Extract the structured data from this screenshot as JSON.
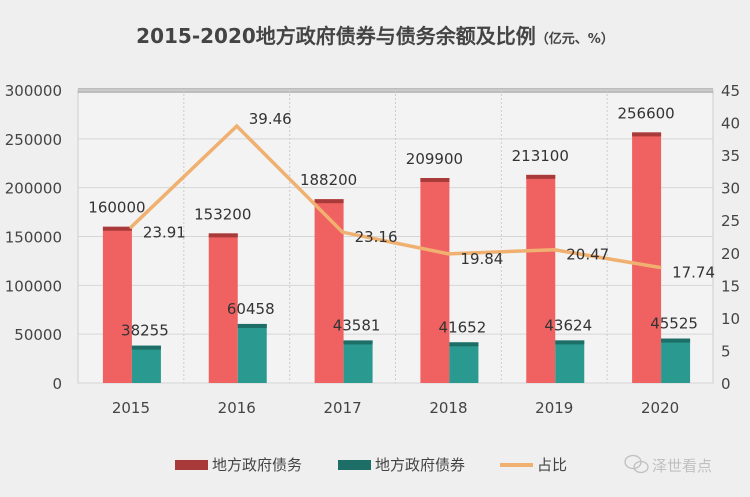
{
  "chart_data": {
    "type": "bar+line",
    "title": "2015-2020地方政府债券与债务余额及比例",
    "title_unit": "（亿元、%）",
    "categories": [
      "2015",
      "2016",
      "2017",
      "2018",
      "2019",
      "2020"
    ],
    "series": [
      {
        "name": "地方政府债务",
        "type": "bar",
        "axis": "left",
        "color": "#f06262",
        "values": [
          160000,
          153200,
          188200,
          209900,
          213100,
          256600
        ]
      },
      {
        "name": "地方政府债券",
        "type": "bar",
        "axis": "left",
        "color": "#2a9a90",
        "values": [
          38255,
          60458,
          43581,
          41652,
          43624,
          45525
        ]
      },
      {
        "name": "占比",
        "type": "line",
        "axis": "right",
        "color": "#f0b070",
        "values": [
          23.91,
          39.46,
          23.16,
          19.84,
          20.47,
          17.74
        ]
      }
    ],
    "left_axis": {
      "range": [
        0,
        300000
      ],
      "ticks": [
        "0",
        "50000",
        "100000",
        "150000",
        "200000",
        "250000",
        "300000"
      ]
    },
    "right_axis": {
      "range": [
        0,
        45
      ],
      "ticks": [
        "0",
        "5",
        "10",
        "15",
        "20",
        "25",
        "30",
        "35",
        "40",
        "45"
      ]
    },
    "grid": true,
    "legend_placement": "bottom"
  },
  "watermark": {
    "text": "泽世看点",
    "icon": "wechat-icon"
  }
}
